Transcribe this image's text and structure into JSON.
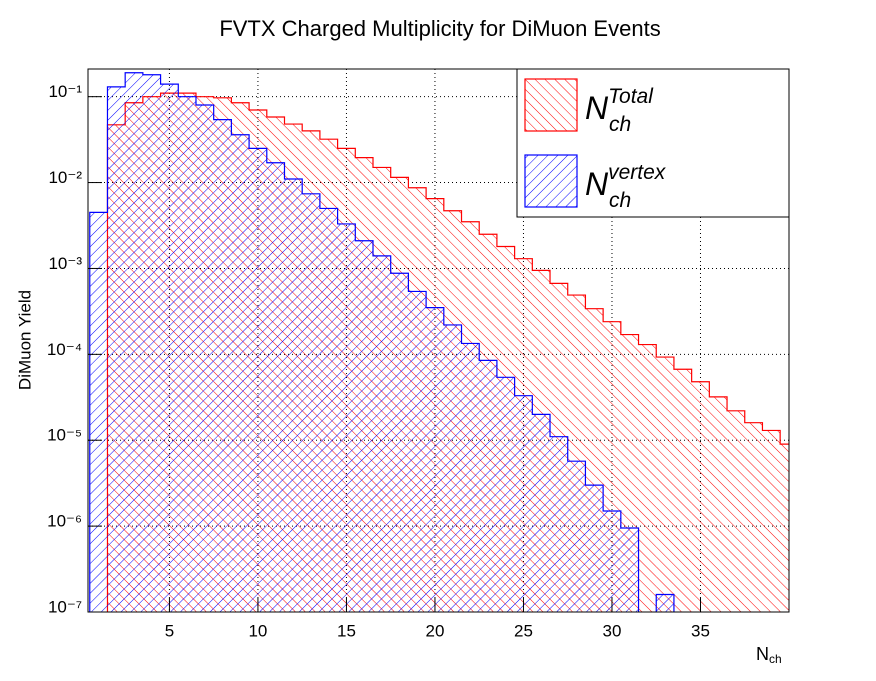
{
  "chart_data": {
    "type": "histogram",
    "title": "FVTX Charged Multiplicity for DiMuon Events",
    "y_label": "DiMuon Yield",
    "x_label": {
      "main": "N",
      "sub": "ch"
    },
    "bins": [
      0.5,
      1.5,
      2.5,
      3.5,
      4.5,
      5.5,
      6.5,
      7.5,
      8.5,
      9.5,
      10.5,
      11.5,
      12.5,
      13.5,
      14.5,
      15.5,
      16.5,
      17.5,
      18.5,
      19.5,
      20.5,
      21.5,
      22.5,
      23.5,
      24.5,
      25.5,
      26.5,
      27.5,
      28.5,
      29.5,
      30.5,
      31.5,
      32.5,
      33.5,
      34.5,
      35.5,
      36.5,
      37.5,
      38.5,
      39.5,
      40.5
    ],
    "series": [
      {
        "name": {
          "main": "N",
          "sub": "ch",
          "sup": "Total"
        },
        "color": "#ff0000",
        "hatch": "\\",
        "values": [
          null,
          0.047,
          0.085,
          0.1,
          0.11,
          0.11,
          0.1,
          0.097,
          0.085,
          0.07,
          0.058,
          0.048,
          0.04,
          0.032,
          0.025,
          0.0195,
          0.015,
          0.0115,
          0.0087,
          0.0065,
          0.0047,
          0.0035,
          0.0025,
          0.0018,
          0.0013,
          0.00095,
          0.00067,
          0.00049,
          0.00034,
          0.00024,
          0.00017,
          0.00013,
          9.3e-05,
          6.7e-05,
          4.8e-05,
          3.2e-05,
          2.2e-05,
          1.6e-05,
          1.3e-05,
          9e-06
        ]
      },
      {
        "name": {
          "main": "N",
          "sub": "ch",
          "sup": "vertex"
        },
        "color": "#0000ff",
        "hatch": "/",
        "values": [
          0.0045,
          0.13,
          0.19,
          0.18,
          0.14,
          0.1,
          0.08,
          0.054,
          0.036,
          0.025,
          0.017,
          0.011,
          0.0074,
          0.005,
          0.0033,
          0.0021,
          0.0014,
          0.00088,
          0.00054,
          0.00035,
          0.00022,
          0.000134,
          8.5e-05,
          5.4e-05,
          3.3e-05,
          2e-05,
          1.1e-05,
          5.7e-06,
          3e-06,
          1.5e-06,
          9.5e-07,
          null,
          1.6e-07,
          null,
          null,
          null,
          null,
          null,
          null,
          null
        ]
      }
    ],
    "xlim": [
      0.4,
      40
    ],
    "ylim": [
      1e-07,
      0.21
    ],
    "ylog": true,
    "xticks": [
      5,
      10,
      15,
      20,
      25,
      30,
      35
    ],
    "yticks": [
      {
        "value": 1e-07,
        "label": "10⁻⁷"
      },
      {
        "value": 1e-06,
        "label": "10⁻⁶"
      },
      {
        "value": 1e-05,
        "label": "10⁻⁵"
      },
      {
        "value": 0.0001,
        "label": "10⁻⁴"
      },
      {
        "value": 0.001,
        "label": "10⁻³"
      },
      {
        "value": 0.01,
        "label": "10⁻²"
      },
      {
        "value": 0.1,
        "label": "10⁻¹"
      }
    ],
    "grid": true,
    "legend": "top-right"
  }
}
